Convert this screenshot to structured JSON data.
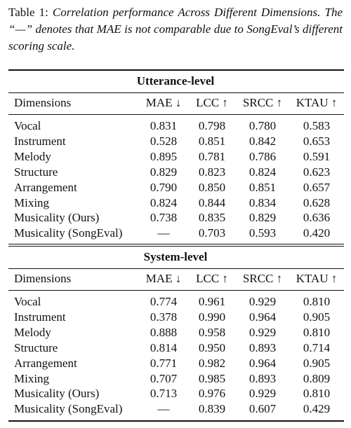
{
  "caption": {
    "label": "Table 1:",
    "text": "Correlation performance Across Different Dimensions. The “—” denotes that MAE is not comparable due to SongEval’s different scoring scale."
  },
  "sections": [
    {
      "title": "Utterance-level",
      "header": [
        "Dimensions",
        "MAE ↓",
        "LCC ↑",
        "SRCC ↑",
        "KTAU ↑"
      ],
      "rows": [
        [
          "Vocal",
          "0.831",
          "0.798",
          "0.780",
          "0.583"
        ],
        [
          "Instrument",
          "0.528",
          "0.851",
          "0.842",
          "0.653"
        ],
        [
          "Melody",
          "0.895",
          "0.781",
          "0.786",
          "0.591"
        ],
        [
          "Structure",
          "0.829",
          "0.823",
          "0.824",
          "0.623"
        ],
        [
          "Arrangement",
          "0.790",
          "0.850",
          "0.851",
          "0.657"
        ],
        [
          "Mixing",
          "0.824",
          "0.844",
          "0.834",
          "0.628"
        ],
        [
          "Musicality (Ours)",
          "0.738",
          "0.835",
          "0.829",
          "0.636"
        ],
        [
          "Musicality (SongEval)",
          "—",
          "0.703",
          "0.593",
          "0.420"
        ]
      ]
    },
    {
      "title": "System-level",
      "header": [
        "Dimensions",
        "MAE ↓",
        "LCC ↑",
        "SRCC ↑",
        "KTAU ↑"
      ],
      "rows": [
        [
          "Vocal",
          "0.774",
          "0.961",
          "0.929",
          "0.810"
        ],
        [
          "Instrument",
          "0.378",
          "0.990",
          "0.964",
          "0.905"
        ],
        [
          "Melody",
          "0.888",
          "0.958",
          "0.929",
          "0.810"
        ],
        [
          "Structure",
          "0.814",
          "0.950",
          "0.893",
          "0.714"
        ],
        [
          "Arrangement",
          "0.771",
          "0.982",
          "0.964",
          "0.905"
        ],
        [
          "Mixing",
          "0.707",
          "0.985",
          "0.893",
          "0.809"
        ],
        [
          "Musicality (Ours)",
          "0.713",
          "0.976",
          "0.929",
          "0.810"
        ],
        [
          "Musicality (SongEval)",
          "—",
          "0.839",
          "0.607",
          "0.429"
        ]
      ]
    }
  ]
}
